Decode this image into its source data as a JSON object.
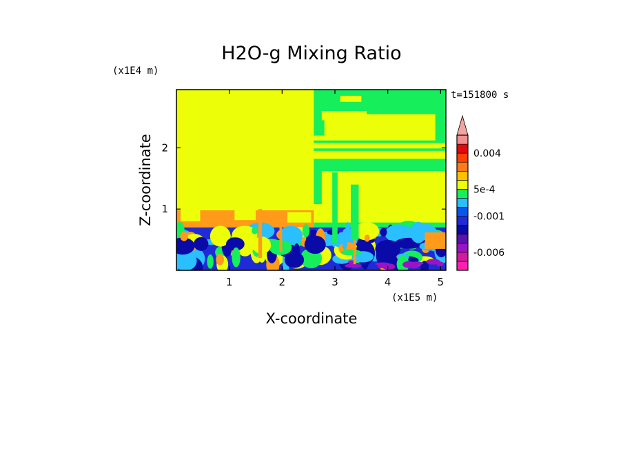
{
  "chart_data": {
    "type": "heatmap",
    "title": "H2O-g Mixing Ratio",
    "xlabel": "X-coordinate",
    "ylabel": "Z-coordinate",
    "x_scale_label": "(x1E5 m)",
    "y_scale_label": "(x1E4 m)",
    "time_label": "t=151800 s",
    "xlim": [
      0.0,
      5.1
    ],
    "ylim": [
      0.0,
      2.95
    ],
    "x_ticks": [
      {
        "value": 1,
        "label": "1"
      },
      {
        "value": 2,
        "label": "2"
      },
      {
        "value": 3,
        "label": "3"
      },
      {
        "value": 4,
        "label": "4"
      },
      {
        "value": 5,
        "label": "5"
      }
    ],
    "y_ticks": [
      {
        "value": 1,
        "label": "1"
      },
      {
        "value": 2,
        "label": "2"
      }
    ],
    "colorbar": {
      "extend": "max",
      "extend_color": "#f4a5a0",
      "levels": [
        {
          "color": "#ff1fb0"
        },
        {
          "color": "#d21aa0"
        },
        {
          "color": "#9c13c3"
        },
        {
          "color": "#5a12b0"
        },
        {
          "color": "#0a0aa8"
        },
        {
          "color": "#1f2bd6"
        },
        {
          "color": "#0a55ee"
        },
        {
          "color": "#2abfff"
        },
        {
          "color": "#16ee5c"
        },
        {
          "color": "#ecff08"
        },
        {
          "color": "#ffc000"
        },
        {
          "color": "#ff7a1a"
        },
        {
          "color": "#ff4000"
        },
        {
          "color": "#e00a0a"
        },
        {
          "color": "#f09090"
        }
      ],
      "labels": [
        {
          "value": 0.004,
          "text": "0.004"
        },
        {
          "value": 0.0005,
          "text": "5e-4"
        },
        {
          "value": -0.001,
          "text": "-0.001"
        },
        {
          "value": -0.006,
          "text": "-0.006"
        }
      ]
    },
    "field_colors": {
      "upper_left": "#ecff08",
      "upper_right": "#ecff08",
      "mid_right": "#16ee5c",
      "boundary_orange": "#ff9a1a",
      "low_blue": "#1f2bd6",
      "low_dark": "#0a0aa8",
      "cyan": "#2abfff",
      "purple": "#9c13c3"
    }
  }
}
